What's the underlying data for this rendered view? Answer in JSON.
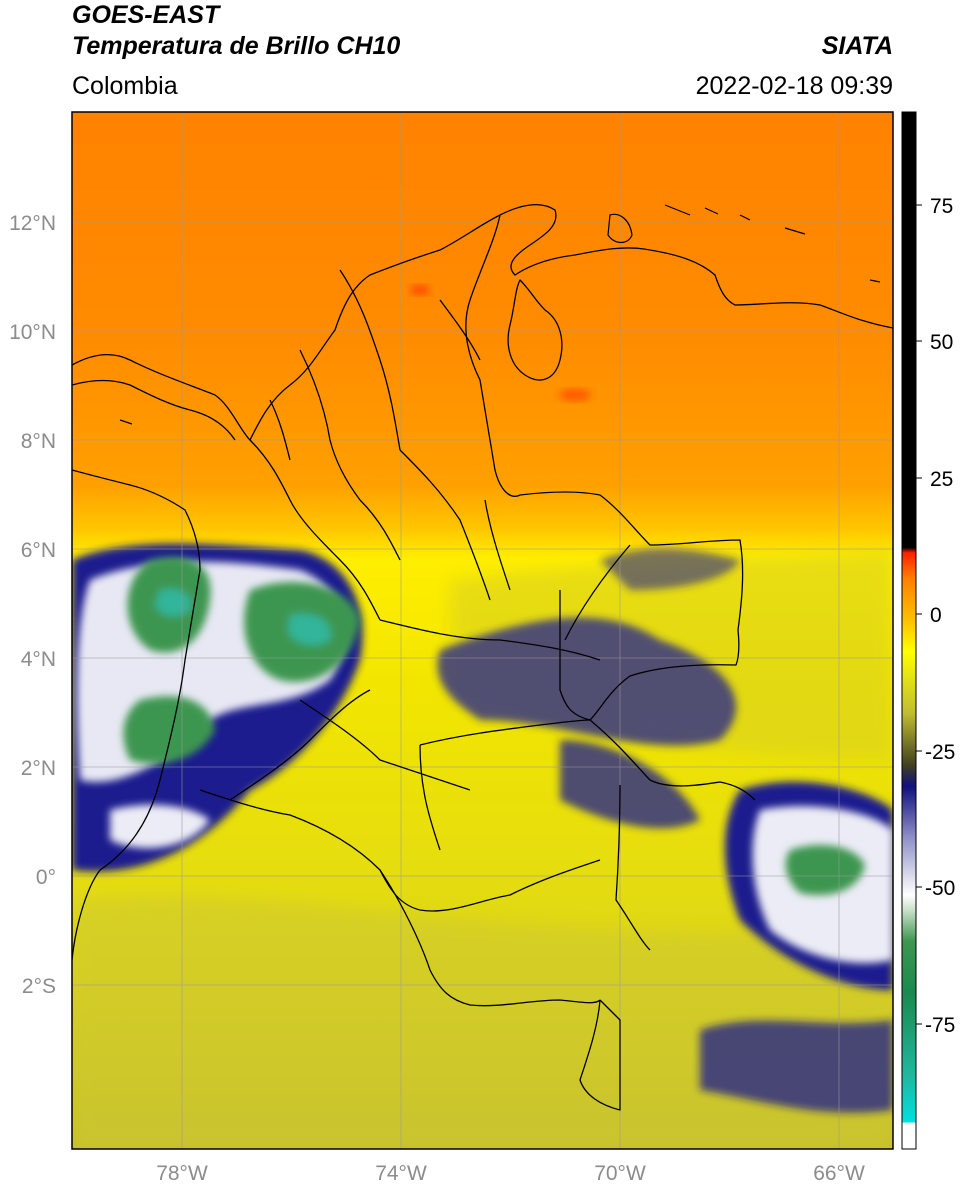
{
  "header": {
    "satellite": "GOES-EAST",
    "product": "Temperatura de Brillo CH10",
    "organization": "SIATA",
    "region": "Colombia",
    "timestamp": "2022-02-18 09:39"
  },
  "map": {
    "lon_range": [
      -80,
      -65
    ],
    "lat_range": [
      -5,
      14
    ],
    "lat_ticks": [
      {
        "value": 12,
        "label": "12°N"
      },
      {
        "value": 10,
        "label": "10°N"
      },
      {
        "value": 8,
        "label": "8°N"
      },
      {
        "value": 6,
        "label": "6°N"
      },
      {
        "value": 4,
        "label": "4°N"
      },
      {
        "value": 2,
        "label": "2°N"
      },
      {
        "value": 0,
        "label": "0°"
      },
      {
        "value": -2,
        "label": "2°S"
      }
    ],
    "lon_ticks": [
      {
        "value": -78,
        "label": "78°W"
      },
      {
        "value": -74,
        "label": "74°W"
      },
      {
        "value": -70,
        "label": "70°W"
      },
      {
        "value": -66,
        "label": "66°W"
      }
    ],
    "colors": {
      "background_orange": "#ff8c00",
      "warm_orange": "#ffa500",
      "yellow": "#f5ea00",
      "olive": "#c9c42a",
      "navy": "#1a1a8c",
      "white_cloud": "#f2f2f2",
      "green_cloud": "#3c9650",
      "teal": "#30b59a",
      "border": "#000000",
      "grid": "#9a9a9a"
    }
  },
  "colorbar": {
    "range": [
      -95,
      90
    ],
    "ticks": [
      {
        "value": 75,
        "label": "75"
      },
      {
        "value": 50,
        "label": "50"
      },
      {
        "value": 25,
        "label": "25"
      },
      {
        "value": 0,
        "label": "0"
      },
      {
        "value": -25,
        "label": "-25"
      },
      {
        "value": -50,
        "label": "-50"
      },
      {
        "value": -75,
        "label": "-75"
      }
    ]
  }
}
